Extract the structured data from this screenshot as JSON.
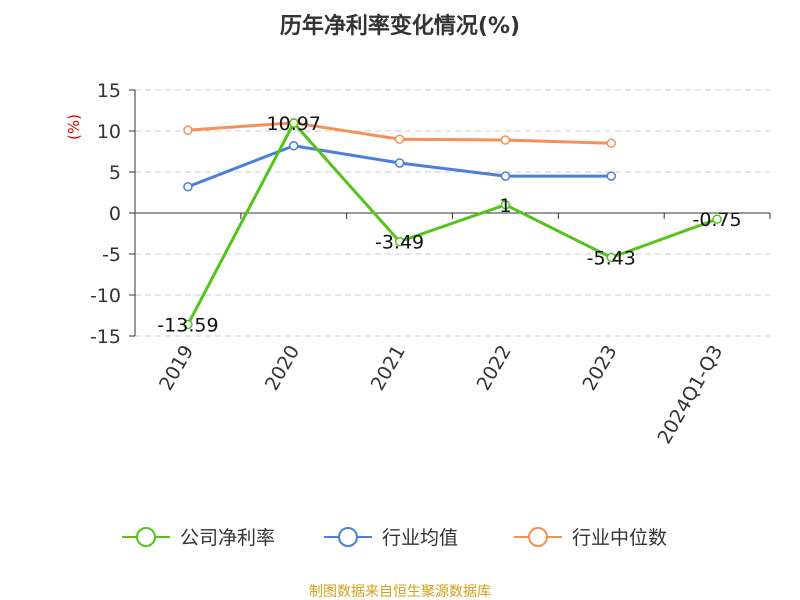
{
  "chart_data": {
    "type": "line",
    "title": "历年净利率变化情况(%)",
    "ylabel": "(%)",
    "xlabel": "",
    "categories": [
      "2019",
      "2020",
      "2021",
      "2022",
      "2023",
      "2024Q1-Q3"
    ],
    "ylim": [
      -15,
      15
    ],
    "yticks": [
      15,
      10,
      5,
      0,
      -5,
      -10,
      -15
    ],
    "grid": true,
    "legend_position": "bottom",
    "series": [
      {
        "name": "公司净利率",
        "color": "#52c41a",
        "values": [
          -13.59,
          10.97,
          -3.49,
          1,
          -5.43,
          -0.75
        ],
        "labels": [
          "-13.59",
          "10.97",
          "-3.49",
          "1",
          "-5.43",
          "-0.75"
        ]
      },
      {
        "name": "行业均值",
        "color": "#4a7fdc",
        "values": [
          3.2,
          8.2,
          6.1,
          4.5,
          4.5,
          null
        ]
      },
      {
        "name": "行业中位数",
        "color": "#f5905a",
        "values": [
          10.1,
          11.0,
          9.0,
          8.9,
          8.5,
          null
        ]
      }
    ]
  },
  "source_text": "制图数据来自恒生聚源数据库",
  "colors": {
    "axis": "#333333",
    "grid": "#cccccc",
    "ylabel": "#dd0000",
    "source": "#d4a017"
  }
}
